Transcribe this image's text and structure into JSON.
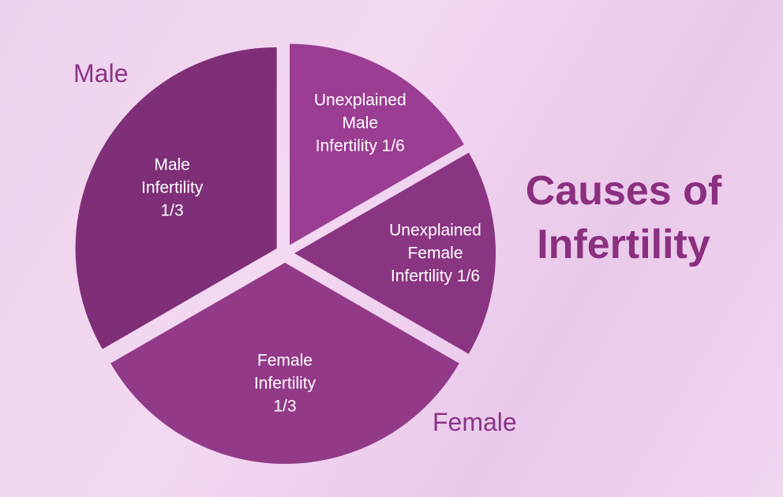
{
  "chart_data": {
    "type": "pie",
    "title": "Causes of Infertility",
    "categories": [
      "Male Infertility",
      "Female Infertility",
      "Unexplained Female Infertility",
      "Unexplained Male Infertility"
    ],
    "values": [
      0.3333,
      0.3333,
      0.1667,
      0.1667
    ],
    "value_labels": [
      "1/3",
      "1/3",
      "1/6",
      "1/6"
    ],
    "colors": [
      "#7e2f78",
      "#923a88",
      "#8a3582",
      "#9b3d93"
    ],
    "annotations": [
      "Male",
      "Female"
    ]
  }
}
